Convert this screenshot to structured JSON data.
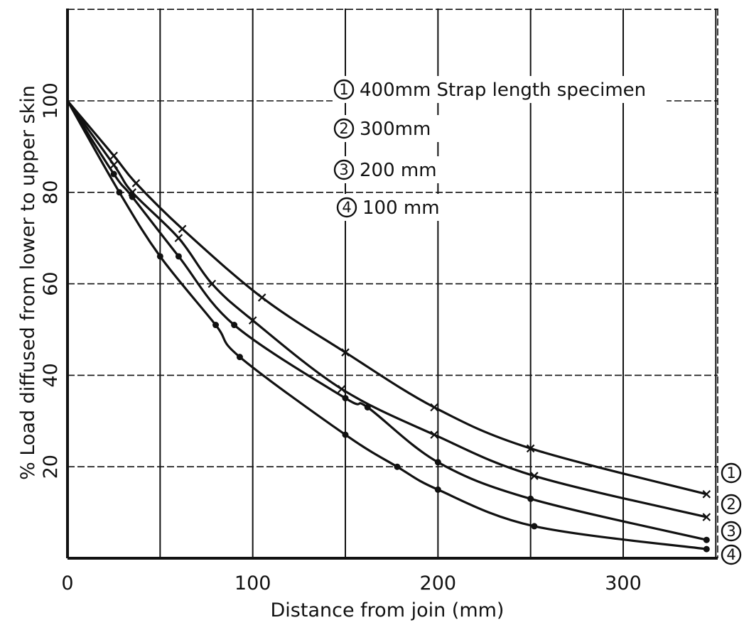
{
  "chart_data": {
    "type": "line",
    "title": "",
    "xlabel": "Distance from join (mm)",
    "ylabel": "% Load diffused from lower to upper skin",
    "xlim": [
      0,
      350
    ],
    "ylim": [
      0,
      120
    ],
    "x_ticks": [
      0,
      100,
      200,
      300
    ],
    "y_ticks": [
      20,
      40,
      60,
      80,
      100
    ],
    "grid": true,
    "legend_position": "top-right",
    "legend": [
      {
        "number": "1",
        "label": "400mm Strap length specimen"
      },
      {
        "number": "2",
        "label": "300mm"
      },
      {
        "number": "3",
        "label": "200 mm"
      },
      {
        "number": "4",
        "label": "100 mm"
      }
    ],
    "series": [
      {
        "tag": "1",
        "marker": "cross",
        "x": [
          0,
          25,
          37,
          62,
          105,
          150,
          198,
          250,
          345
        ],
        "y": [
          100,
          88,
          82,
          72,
          57,
          45,
          33,
          24,
          14
        ]
      },
      {
        "tag": "2",
        "marker": "cross",
        "x": [
          0,
          25,
          35,
          60,
          78,
          100,
          148,
          198,
          252,
          345
        ],
        "y": [
          100,
          86,
          80,
          70,
          60,
          52,
          37,
          27,
          18,
          9
        ]
      },
      {
        "tag": "3",
        "marker": "dot",
        "x": [
          0,
          25,
          35,
          60,
          90,
          150,
          162,
          200,
          250,
          345
        ],
        "y": [
          100,
          84,
          79,
          66,
          51,
          35,
          33,
          21,
          13,
          4
        ]
      },
      {
        "tag": "4",
        "marker": "dot",
        "x": [
          0,
          28,
          50,
          80,
          93,
          150,
          178,
          200,
          252,
          345
        ],
        "y": [
          100,
          80,
          66,
          51,
          44,
          27,
          20,
          15,
          7,
          2
        ]
      }
    ]
  }
}
